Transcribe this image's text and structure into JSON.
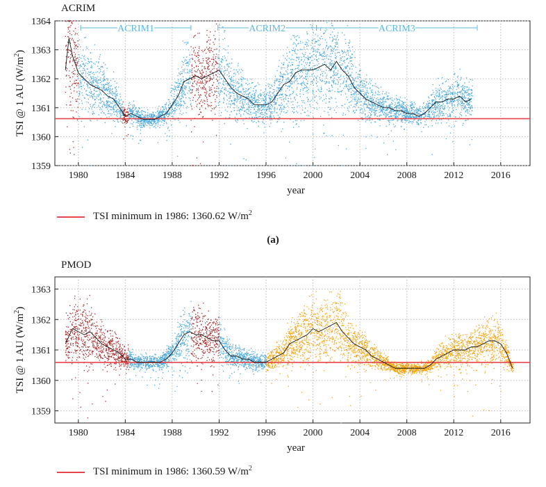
{
  "chart_data": [
    {
      "type": "scatter",
      "title": "ACRIM",
      "xlabel": "year",
      "ylabel": "TSI @ 1 AU (W/m2)",
      "ylabel_parts": {
        "main": "TSI @ 1 AU (W/m",
        "sup": "2",
        "end": ")"
      },
      "xlim": [
        1978,
        2018.5
      ],
      "ylim": [
        1359,
        1364
      ],
      "xticks": [
        "1980",
        "1984",
        "1988",
        "1992",
        "1996",
        "2000",
        "2004",
        "2008",
        "2012",
        "2016"
      ],
      "yticks": [
        "1359",
        "1360",
        "1361",
        "1362",
        "1363",
        "1364"
      ],
      "grid": true,
      "reference_line": {
        "label": "TSI minimum in 1986: 1360.62 W/m2",
        "label_main": "TSI minimum in 1986: 1360.62 W/m",
        "label_sup": "2",
        "value": 1360.62,
        "color": "#e8454a"
      },
      "annotations": [
        {
          "label": "ACRIM1",
          "x_start": 1980.2,
          "x_end": 1989.6
        },
        {
          "label": "ACRIM2",
          "x_start": 1991.9,
          "x_end": 2000.3
        },
        {
          "label": "ACRIM3",
          "x_start": 2000.3,
          "x_end": 2014.0
        }
      ],
      "colors": {
        "blue": "#4aa8dc",
        "red": "#a52a2a",
        "mean": "#111111",
        "annotation": "#5bb8e3"
      },
      "segments": [
        {
          "x_start": 1978.9,
          "x_end": 1980.0,
          "color": "#a52a2a"
        },
        {
          "x_start": 1980.0,
          "x_end": 1983.8,
          "color": "#4aa8dc"
        },
        {
          "x_start": 1983.8,
          "x_end": 1984.3,
          "color": "#a52a2a"
        },
        {
          "x_start": 1984.3,
          "x_end": 1989.6,
          "color": "#4aa8dc"
        },
        {
          "x_start": 1989.6,
          "x_end": 1991.9,
          "color": "#a52a2a"
        },
        {
          "x_start": 1991.9,
          "x_end": 2013.6,
          "color": "#4aa8dc"
        }
      ],
      "mean_series": {
        "x": [
          1978.9,
          1979.2,
          1979.5,
          1980.0,
          1980.5,
          1981.0,
          1981.5,
          1982.0,
          1982.5,
          1983.0,
          1983.5,
          1984.0,
          1984.5,
          1985.0,
          1985.5,
          1986.0,
          1986.5,
          1987.0,
          1987.5,
          1988.0,
          1988.5,
          1989.0,
          1989.5,
          1990.0,
          1990.5,
          1991.0,
          1991.5,
          1992.0,
          1992.5,
          1993.0,
          1993.5,
          1994.0,
          1994.5,
          1995.0,
          1995.5,
          1996.0,
          1996.5,
          1997.0,
          1997.5,
          1998.0,
          1998.5,
          1999.0,
          1999.5,
          2000.0,
          2000.5,
          2001.0,
          2001.5,
          2002.0,
          2002.5,
          2003.0,
          2003.5,
          2004.0,
          2004.5,
          2005.0,
          2005.5,
          2006.0,
          2006.5,
          2007.0,
          2007.5,
          2008.0,
          2008.5,
          2009.0,
          2009.5,
          2010.0,
          2010.5,
          2011.0,
          2011.5,
          2012.0,
          2012.5,
          2013.0,
          2013.5
        ],
        "y": [
          1362.3,
          1363.4,
          1362.8,
          1362.2,
          1362.0,
          1361.8,
          1361.7,
          1361.6,
          1361.4,
          1361.3,
          1361.0,
          1360.7,
          1360.8,
          1360.7,
          1360.6,
          1360.6,
          1360.6,
          1360.7,
          1360.8,
          1361.1,
          1361.4,
          1361.9,
          1362.0,
          1362.1,
          1362.0,
          1362.1,
          1362.2,
          1362.3,
          1362.0,
          1361.7,
          1361.5,
          1361.4,
          1361.3,
          1361.1,
          1361.1,
          1361.1,
          1361.2,
          1361.5,
          1361.8,
          1361.9,
          1362.2,
          1362.3,
          1362.3,
          1362.3,
          1362.4,
          1362.5,
          1362.3,
          1362.6,
          1362.3,
          1362.1,
          1361.7,
          1361.5,
          1361.3,
          1361.2,
          1361.1,
          1361.0,
          1361.0,
          1360.9,
          1360.9,
          1360.8,
          1360.8,
          1360.7,
          1360.8,
          1361.0,
          1361.2,
          1361.2,
          1361.3,
          1361.3,
          1361.4,
          1361.2,
          1361.3
        ]
      }
    },
    {
      "type": "scatter",
      "title": "PMOD",
      "xlabel": "year",
      "ylabel": "TSI @ 1 AU (W/m2)",
      "ylabel_parts": {
        "main": "TSI @ 1 AU (W/m",
        "sup": "2",
        "end": ")"
      },
      "xlim": [
        1978,
        2018.5
      ],
      "ylim": [
        1358.6,
        1363.4
      ],
      "xticks": [
        "1980",
        "1984",
        "1988",
        "1992",
        "1996",
        "2000",
        "2004",
        "2008",
        "2012",
        "2016"
      ],
      "yticks": [
        "1359",
        "1360",
        "1361",
        "1362",
        "1363"
      ],
      "grid": true,
      "reference_line": {
        "label": "TSI minimum in 1986: 1360.59 W/m2",
        "label_main": "TSI minimum in 1986: 1360.59 W/m",
        "label_sup": "2",
        "value": 1360.59,
        "color": "#e8454a"
      },
      "colors": {
        "blue": "#4aa8dc",
        "red": "#a52a2a",
        "orange": "#f2a30f",
        "mean": "#111111"
      },
      "segments": [
        {
          "x_start": 1978.9,
          "x_end": 1984.3,
          "color": "#a52a2a"
        },
        {
          "x_start": 1984.3,
          "x_end": 1989.6,
          "color": "#4aa8dc"
        },
        {
          "x_start": 1989.6,
          "x_end": 1992.0,
          "color": "#a52a2a"
        },
        {
          "x_start": 1992.0,
          "x_end": 1996.0,
          "color": "#4aa8dc"
        },
        {
          "x_start": 1996.0,
          "x_end": 2017.1,
          "color": "#f2a30f"
        }
      ],
      "mean_series": {
        "x": [
          1978.9,
          1979.5,
          1980.0,
          1980.5,
          1981.0,
          1981.5,
          1982.0,
          1982.5,
          1983.0,
          1983.5,
          1984.0,
          1984.5,
          1985.0,
          1985.5,
          1986.0,
          1986.5,
          1987.0,
          1987.5,
          1988.0,
          1988.5,
          1989.0,
          1989.5,
          1990.0,
          1990.5,
          1991.0,
          1991.5,
          1992.0,
          1992.5,
          1993.0,
          1993.5,
          1994.0,
          1994.5,
          1995.0,
          1995.5,
          1996.0,
          1996.5,
          1997.0,
          1997.5,
          1998.0,
          1998.5,
          1999.0,
          1999.5,
          2000.0,
          2000.5,
          2001.0,
          2001.5,
          2002.0,
          2002.5,
          2003.0,
          2003.5,
          2004.0,
          2004.5,
          2005.0,
          2005.5,
          2006.0,
          2006.5,
          2007.0,
          2007.5,
          2008.0,
          2008.5,
          2009.0,
          2009.5,
          2010.0,
          2010.5,
          2011.0,
          2011.5,
          2012.0,
          2012.5,
          2013.0,
          2013.5,
          2014.0,
          2014.5,
          2015.0,
          2015.5,
          2016.0,
          2016.5,
          2017.0
        ],
        "y": [
          1361.2,
          1361.7,
          1361.6,
          1361.5,
          1361.6,
          1361.4,
          1361.2,
          1361.1,
          1361.0,
          1360.9,
          1360.7,
          1360.7,
          1360.6,
          1360.6,
          1360.6,
          1360.6,
          1360.6,
          1360.7,
          1360.9,
          1361.2,
          1361.5,
          1361.6,
          1361.5,
          1361.5,
          1361.4,
          1361.3,
          1361.3,
          1361.0,
          1360.8,
          1360.8,
          1360.7,
          1360.7,
          1360.6,
          1360.6,
          1360.6,
          1360.7,
          1360.8,
          1360.9,
          1361.2,
          1361.3,
          1361.4,
          1361.5,
          1361.7,
          1361.6,
          1361.7,
          1361.8,
          1361.9,
          1361.6,
          1361.4,
          1361.2,
          1361.1,
          1361.0,
          1360.8,
          1360.7,
          1360.6,
          1360.5,
          1360.4,
          1360.4,
          1360.4,
          1360.4,
          1360.4,
          1360.4,
          1360.5,
          1360.7,
          1360.8,
          1360.9,
          1361.0,
          1361.0,
          1361.0,
          1361.1,
          1361.1,
          1361.2,
          1361.3,
          1361.3,
          1361.2,
          1360.9,
          1360.4
        ]
      }
    }
  ],
  "caption_a": "(a)"
}
